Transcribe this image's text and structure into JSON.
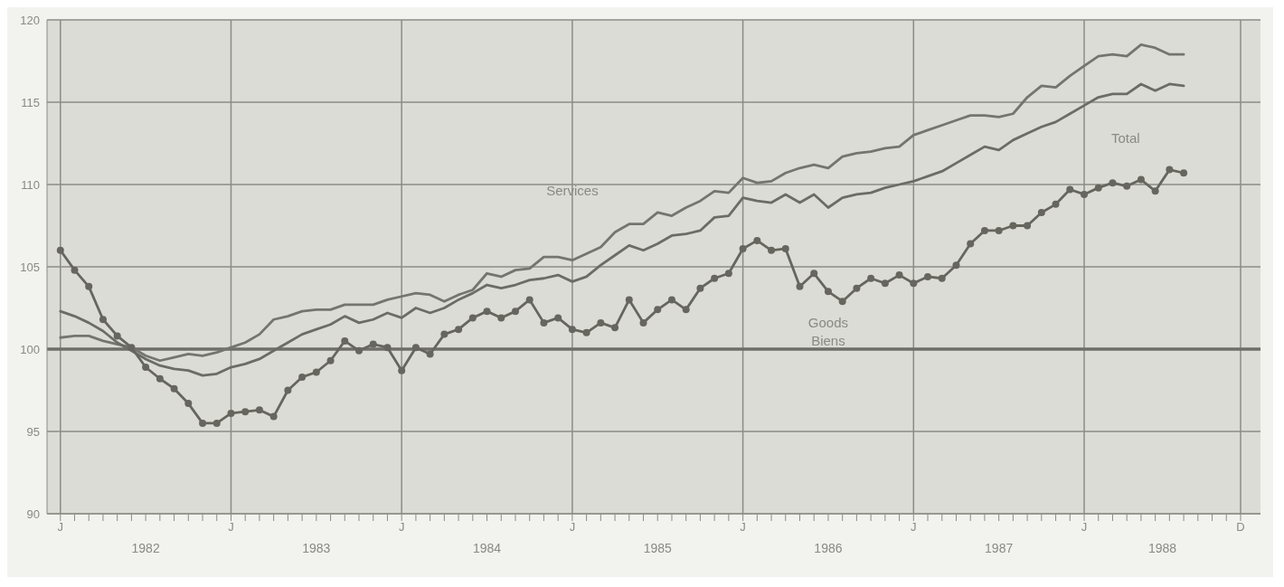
{
  "chart_data": {
    "type": "line",
    "categories": [
      "J",
      null,
      null,
      null,
      null,
      null,
      null,
      null,
      null,
      null,
      null,
      null,
      "J",
      null,
      null,
      null,
      null,
      null,
      null,
      null,
      null,
      null,
      null,
      null,
      "J",
      null,
      null,
      null,
      null,
      null,
      null,
      null,
      null,
      null,
      null,
      null,
      "J",
      null,
      null,
      null,
      null,
      null,
      null,
      null,
      null,
      null,
      null,
      null,
      "J",
      null,
      null,
      null,
      null,
      null,
      null,
      null,
      null,
      null,
      null,
      null,
      "J",
      null,
      null,
      null,
      null,
      null,
      null,
      null,
      null,
      null,
      null,
      null,
      "J",
      null,
      null,
      null,
      null,
      null,
      null,
      null,
      null,
      null,
      null,
      "D"
    ],
    "ylim": [
      90,
      120
    ],
    "yticks": [
      90,
      95,
      100,
      105,
      110,
      115,
      120
    ],
    "grid": true,
    "ref_lines": [
      {
        "axis": "y",
        "value": 100,
        "color": "#6f6f69"
      }
    ],
    "annotations": [
      "1982",
      "1983",
      "1984",
      "1985",
      "1986",
      "1987",
      "1988"
    ],
    "series": [
      {
        "name": "Services",
        "color": "#75756f",
        "values": [
          100.7,
          100.8,
          100.8,
          100.5,
          100.3,
          100.1,
          99.6,
          99.3,
          99.5,
          99.7,
          99.6,
          99.8,
          100.1,
          100.4,
          100.9,
          101.8,
          102.0,
          102.3,
          102.4,
          102.4,
          102.7,
          102.7,
          102.7,
          103.0,
          103.2,
          103.4,
          103.3,
          102.9,
          103.3,
          103.6,
          104.6,
          104.4,
          104.8,
          104.9,
          105.6,
          105.6,
          105.4,
          105.8,
          106.2,
          107.1,
          107.6,
          107.6,
          108.3,
          108.1,
          108.6,
          109.0,
          109.6,
          109.5,
          110.4,
          110.1,
          110.2,
          110.7,
          111.0,
          111.2,
          111.0,
          111.7,
          111.9,
          112.0,
          112.2,
          112.3,
          113.0,
          113.3,
          113.6,
          113.9,
          114.2,
          114.2,
          114.1,
          114.3,
          115.3,
          116.0,
          115.9,
          116.6,
          117.2,
          117.8,
          117.9,
          117.8,
          118.5,
          118.3,
          117.9,
          117.9,
          null,
          null,
          null,
          null
        ]
      },
      {
        "name": "Total",
        "color": "#6c6c66",
        "values": [
          102.3,
          102.0,
          101.6,
          101.1,
          100.4,
          99.9,
          99.4,
          99.0,
          98.8,
          98.7,
          98.4,
          98.5,
          98.9,
          99.1,
          99.4,
          99.9,
          100.4,
          100.9,
          101.2,
          101.5,
          102.0,
          101.6,
          101.8,
          102.2,
          101.9,
          102.5,
          102.2,
          102.5,
          103.0,
          103.4,
          103.9,
          103.7,
          103.9,
          104.2,
          104.3,
          104.5,
          104.1,
          104.4,
          105.1,
          105.7,
          106.3,
          106.0,
          106.4,
          106.9,
          107.0,
          107.2,
          108.0,
          108.1,
          109.2,
          109.0,
          108.9,
          109.4,
          108.9,
          109.4,
          108.6,
          109.2,
          109.4,
          109.5,
          109.8,
          110.0,
          110.2,
          110.5,
          110.8,
          111.3,
          111.8,
          112.3,
          112.1,
          112.7,
          113.1,
          113.5,
          113.8,
          114.3,
          114.8,
          115.3,
          115.5,
          115.5,
          116.1,
          115.7,
          116.1,
          116.0,
          null,
          null,
          null,
          null
        ]
      },
      {
        "name": "Goods\nBiens",
        "color": "#66665f",
        "marker": "circle",
        "values": [
          106.0,
          104.8,
          103.8,
          101.8,
          100.8,
          100.1,
          98.9,
          98.2,
          97.6,
          96.7,
          95.5,
          95.5,
          96.1,
          96.2,
          96.3,
          95.9,
          97.5,
          98.3,
          98.6,
          99.3,
          100.5,
          99.9,
          100.3,
          100.1,
          98.7,
          100.1,
          99.7,
          100.9,
          101.2,
          101.9,
          102.3,
          101.9,
          102.3,
          103.0,
          101.6,
          101.9,
          101.2,
          101.0,
          101.6,
          101.3,
          103.0,
          101.6,
          102.4,
          103.0,
          102.4,
          103.7,
          104.3,
          104.6,
          106.1,
          106.6,
          106.0,
          106.1,
          103.8,
          104.6,
          103.5,
          102.9,
          103.7,
          104.3,
          104.0,
          104.5,
          104.0,
          104.4,
          104.3,
          105.1,
          106.4,
          107.2,
          107.2,
          107.5,
          107.5,
          108.3,
          108.8,
          109.7,
          109.4,
          109.8,
          110.1,
          109.9,
          110.3,
          109.6,
          110.9,
          110.7,
          null,
          null,
          null,
          null
        ]
      }
    ]
  }
}
